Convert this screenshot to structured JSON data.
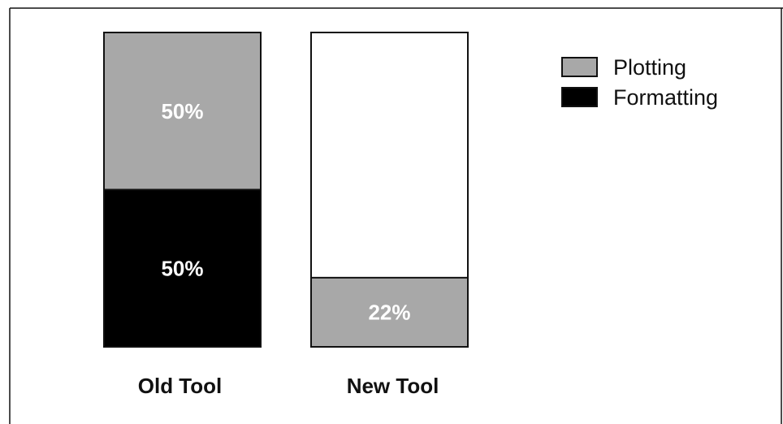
{
  "chart_data": {
    "type": "bar",
    "stacked": true,
    "categories": [
      "Old Tool",
      "New Tool"
    ],
    "series": [
      {
        "name": "Formatting",
        "values": [
          50,
          0
        ],
        "color": "#000000"
      },
      {
        "name": "Plotting",
        "values": [
          50,
          22
        ],
        "color": "#a8a8a8"
      }
    ],
    "data_labels": [
      {
        "category": "Old Tool",
        "series": "Plotting",
        "text": "50%"
      },
      {
        "category": "Old Tool",
        "series": "Formatting",
        "text": "50%"
      },
      {
        "category": "New Tool",
        "series": "Plotting",
        "text": "22%"
      }
    ],
    "ylim": [
      0,
      100
    ],
    "legend_placement": "top-right",
    "grid": false,
    "bar_outline_color": "#111111",
    "background_color": "#ffffff"
  },
  "legend": {
    "entries": [
      {
        "name": "Plotting",
        "color": "#a8a8a8"
      },
      {
        "name": "Formatting",
        "color": "#000000"
      }
    ]
  }
}
